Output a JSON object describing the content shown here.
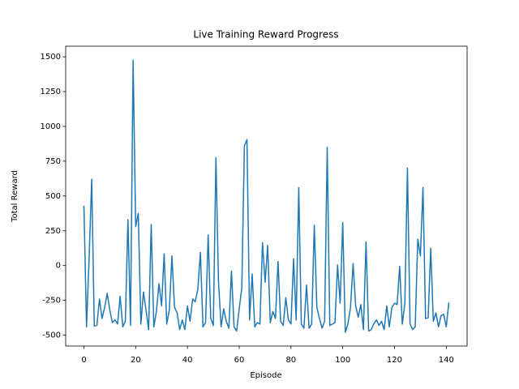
{
  "chart_data": {
    "type": "line",
    "title": "Live Training Reward Progress",
    "xlabel": "Episode",
    "ylabel": "Total Reward",
    "x": [
      0,
      1,
      2,
      3,
      4,
      5,
      6,
      7,
      8,
      9,
      10,
      11,
      12,
      13,
      14,
      15,
      16,
      17,
      18,
      19,
      20,
      21,
      22,
      23,
      24,
      25,
      26,
      27,
      28,
      29,
      30,
      31,
      32,
      33,
      34,
      35,
      36,
      37,
      38,
      39,
      40,
      41,
      42,
      43,
      44,
      45,
      46,
      47,
      48,
      49,
      50,
      51,
      52,
      53,
      54,
      55,
      56,
      57,
      58,
      59,
      60,
      61,
      62,
      63,
      64,
      65,
      66,
      67,
      68,
      69,
      70,
      71,
      72,
      73,
      74,
      75,
      76,
      77,
      78,
      79,
      80,
      81,
      82,
      83,
      84,
      85,
      86,
      87,
      88,
      89,
      90,
      91,
      92,
      93,
      94,
      95,
      96,
      97,
      98,
      99,
      100,
      101,
      102,
      103,
      104,
      105,
      106,
      107,
      108,
      109,
      110,
      111,
      112,
      113,
      114,
      115,
      116,
      117,
      118,
      119,
      120,
      121,
      122,
      123,
      124,
      125,
      126,
      127,
      128,
      129,
      130,
      131,
      132,
      133,
      134,
      135,
      136,
      137,
      138,
      139,
      140,
      141
    ],
    "series": [
      {
        "color": "#1f77b4",
        "values": [
          430,
          -440,
          50,
          620,
          -435,
          -430,
          -240,
          -380,
          -300,
          -200,
          -320,
          -410,
          -390,
          -420,
          -220,
          -440,
          -400,
          330,
          -430,
          1475,
          280,
          375,
          -420,
          -190,
          -320,
          -460,
          295,
          -440,
          -330,
          -130,
          -290,
          85,
          -420,
          -320,
          70,
          -300,
          -340,
          -460,
          -390,
          -460,
          -290,
          -400,
          -240,
          -260,
          -170,
          95,
          -440,
          -410,
          220,
          -380,
          -430,
          775,
          -120,
          -440,
          -310,
          -400,
          -450,
          -40,
          -440,
          -470,
          -310,
          -160,
          860,
          905,
          -390,
          -60,
          -440,
          -410,
          -420,
          165,
          -120,
          145,
          -410,
          -330,
          -380,
          30,
          -400,
          -430,
          -230,
          -390,
          -420,
          50,
          -390,
          560,
          -420,
          -450,
          -140,
          -450,
          -420,
          290,
          -300,
          -380,
          -450,
          -400,
          850,
          -430,
          -420,
          -410,
          5,
          -270,
          310,
          -480,
          -420,
          -300,
          15,
          -290,
          -370,
          -280,
          -460,
          170,
          -470,
          -460,
          -420,
          -390,
          -430,
          -400,
          -460,
          -290,
          -440,
          -300,
          -270,
          -280,
          -5,
          -420,
          -270,
          700,
          -420,
          -460,
          -440,
          190,
          70,
          560,
          -380,
          -375,
          125,
          -400,
          -340,
          -440,
          -360,
          -350,
          -440,
          -265
        ]
      }
    ],
    "xlim": [
      -7.05,
      148.05
    ],
    "ylim": [
      -578,
      1576
    ],
    "xticks": [
      0,
      20,
      40,
      60,
      80,
      100,
      120,
      140
    ],
    "yticks": [
      -500,
      -250,
      0,
      250,
      500,
      750,
      1000,
      1250,
      1500
    ]
  }
}
